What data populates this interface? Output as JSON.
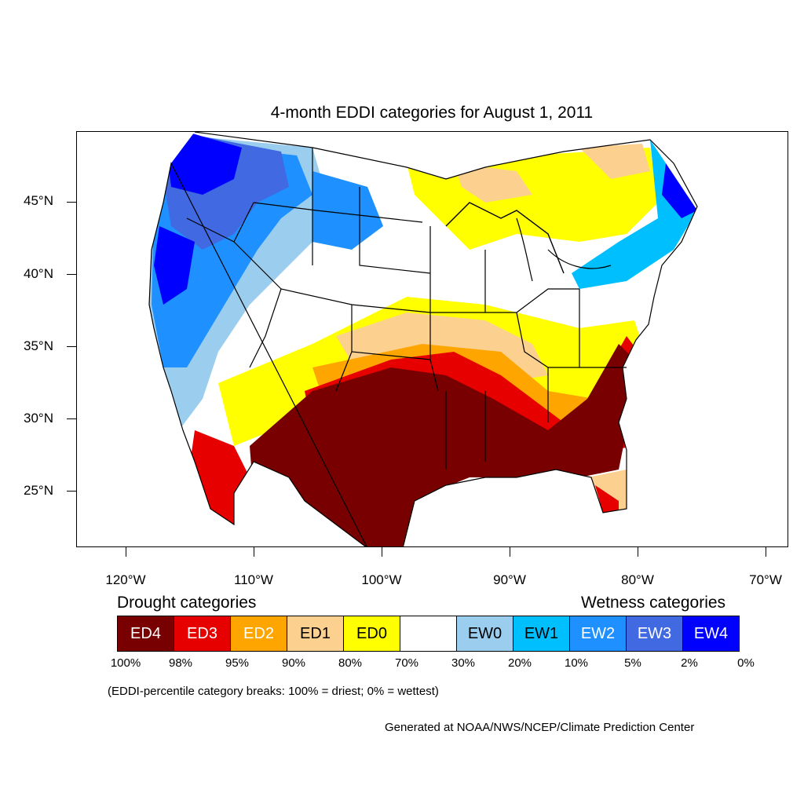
{
  "title": "4-month EDDI categories for August 1, 2011",
  "lat_labels": [
    "45°N",
    "40°N",
    "35°N",
    "30°N",
    "25°N"
  ],
  "lon_labels": [
    "120°W",
    "110°W",
    "100°W",
    "90°W",
    "80°W",
    "70°W"
  ],
  "legend": {
    "drought_heading": "Drought categories",
    "wetness_heading": "Wetness categories",
    "categories": [
      {
        "label": "ED4",
        "color": "#780000",
        "text_color": "#ffffff"
      },
      {
        "label": "ED3",
        "color": "#e60000",
        "text_color": "#ffffff"
      },
      {
        "label": "ED2",
        "color": "#ffa500",
        "text_color": "#ffffff"
      },
      {
        "label": "ED1",
        "color": "#fcd08f",
        "text_color": "#000000"
      },
      {
        "label": "ED0",
        "color": "#ffff00",
        "text_color": "#000000"
      },
      {
        "label": "",
        "color": "#ffffff",
        "text_color": "#000000"
      },
      {
        "label": "EW0",
        "color": "#9acdee",
        "text_color": "#000000"
      },
      {
        "label": "EW1",
        "color": "#00bfff",
        "text_color": "#000000"
      },
      {
        "label": "EW2",
        "color": "#1e90ff",
        "text_color": "#ffffff"
      },
      {
        "label": "EW3",
        "color": "#4169e1",
        "text_color": "#ffffff"
      },
      {
        "label": "EW4",
        "color": "#0000ff",
        "text_color": "#ffffff"
      }
    ],
    "breaks": [
      "100%",
      "98%",
      "95%",
      "90%",
      "80%",
      "70%",
      "30%",
      "20%",
      "10%",
      "5%",
      "2%",
      "0%"
    ]
  },
  "note": "(EDDI-percentile category breaks: 100% = driest; 0% = wettest)",
  "credit": "Generated at NOAA/NWS/NCEP/Climate Prediction Center"
}
